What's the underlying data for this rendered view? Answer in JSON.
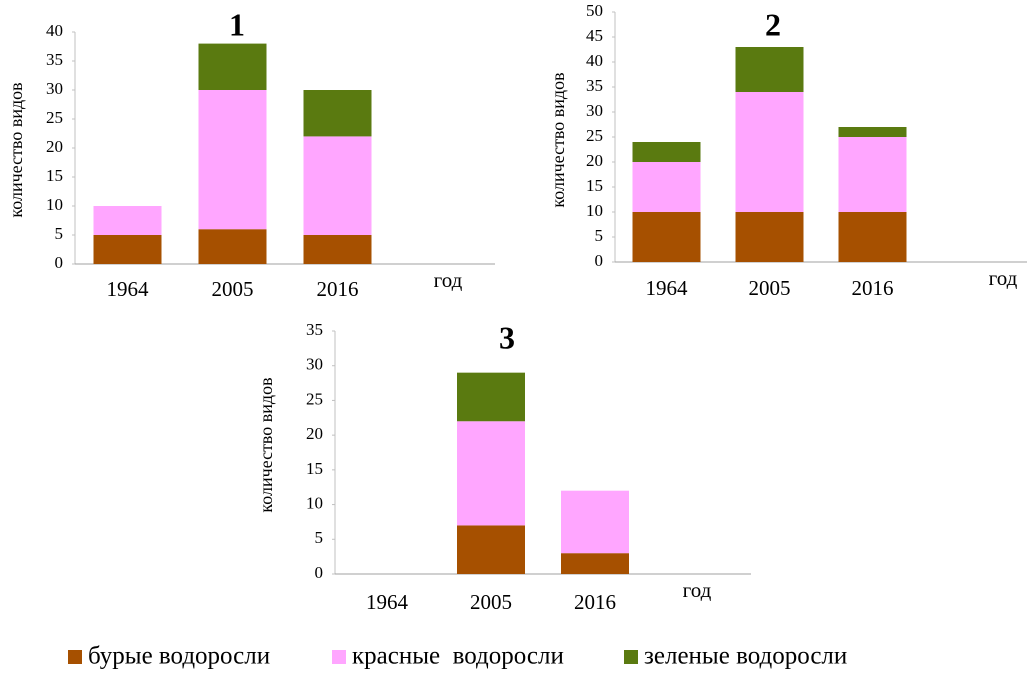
{
  "chart_data": [
    {
      "type": "bar",
      "stacked": true,
      "title": "1",
      "ylabel": "количество видов",
      "xlabel": "год",
      "categories": [
        "1964",
        "2005",
        "2016"
      ],
      "series": [
        {
          "name": "бурые водоросли",
          "color": "#a65000",
          "values": [
            5,
            6,
            5
          ]
        },
        {
          "name": "красные  водоросли",
          "color": "#ffa6ff",
          "values": [
            5,
            24,
            17
          ]
        },
        {
          "name": "зеленые водоросли",
          "color": "#5a7a10",
          "values": [
            0,
            8,
            8
          ]
        }
      ],
      "ylim": [
        0,
        40
      ],
      "yticks": [
        0,
        5,
        10,
        15,
        20,
        25,
        30,
        35,
        40
      ]
    },
    {
      "type": "bar",
      "stacked": true,
      "title": "2",
      "ylabel": "количество видов",
      "xlabel": "год",
      "categories": [
        "1964",
        "2005",
        "2016"
      ],
      "series": [
        {
          "color": "#a65000",
          "values": [
            10,
            10,
            10
          ]
        },
        {
          "color": "#ffa6ff",
          "values": [
            10,
            24,
            15
          ]
        },
        {
          "color": "#5a7a10",
          "values": [
            4,
            9,
            2
          ]
        }
      ],
      "ylim": [
        0,
        50
      ],
      "yticks": [
        0,
        5,
        10,
        15,
        20,
        25,
        30,
        35,
        40,
        45,
        50
      ]
    },
    {
      "type": "bar",
      "stacked": true,
      "title": "3",
      "ylabel": "количество видов",
      "xlabel": "год",
      "categories": [
        "1964",
        "2005",
        "2016"
      ],
      "series": [
        {
          "color": "#a65000",
          "values": [
            0,
            7,
            3
          ]
        },
        {
          "color": "#ffa6ff",
          "values": [
            0,
            15,
            9
          ]
        },
        {
          "color": "#5a7a10",
          "values": [
            0,
            7,
            0
          ]
        }
      ],
      "ylim": [
        0,
        35
      ],
      "yticks": [
        0,
        5,
        10,
        15,
        20,
        25,
        30,
        35
      ]
    }
  ]
}
